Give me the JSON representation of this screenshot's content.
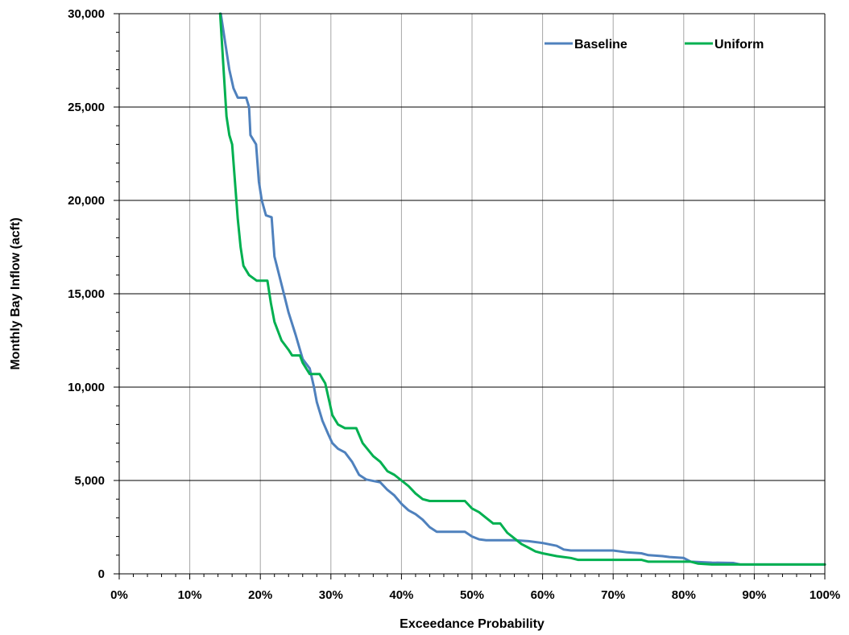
{
  "chart_data": {
    "type": "line",
    "title": "",
    "xlabel": "Exceedance Probability",
    "ylabel": "Monthly Bay Inflow  (acft)",
    "xlim": [
      0,
      100
    ],
    "ylim": [
      0,
      30000
    ],
    "x_ticks": [
      "0%",
      "10%",
      "20%",
      "30%",
      "40%",
      "50%",
      "60%",
      "70%",
      "80%",
      "90%",
      "100%"
    ],
    "y_ticks": [
      "0",
      "5,000",
      "10,000",
      "15,000",
      "20,000",
      "25,000",
      "30,000"
    ],
    "grid": true,
    "legend_position": "top-right",
    "series": [
      {
        "name": "Baseline",
        "color": "#4f81bd",
        "points": [
          [
            14.4,
            30000
          ],
          [
            15.0,
            28500
          ],
          [
            15.6,
            27000
          ],
          [
            16.2,
            26000
          ],
          [
            16.8,
            25500
          ],
          [
            18.0,
            25500
          ],
          [
            18.4,
            25000
          ],
          [
            18.6,
            23500
          ],
          [
            19.4,
            23000
          ],
          [
            19.8,
            21000
          ],
          [
            20.2,
            20000
          ],
          [
            20.8,
            19200
          ],
          [
            21.6,
            19100
          ],
          [
            22.0,
            17000
          ],
          [
            23.0,
            15500
          ],
          [
            24.0,
            14000
          ],
          [
            25.0,
            12800
          ],
          [
            26.0,
            11500
          ],
          [
            27.0,
            11000
          ],
          [
            27.6,
            10000
          ],
          [
            28.0,
            9200
          ],
          [
            28.8,
            8200
          ],
          [
            29.6,
            7500
          ],
          [
            30.2,
            7000
          ],
          [
            31.0,
            6700
          ],
          [
            32.0,
            6500
          ],
          [
            33.0,
            6000
          ],
          [
            34.0,
            5300
          ],
          [
            35.0,
            5050
          ],
          [
            37.0,
            4900
          ],
          [
            38.0,
            4500
          ],
          [
            39.0,
            4200
          ],
          [
            40.0,
            3750
          ],
          [
            41.0,
            3400
          ],
          [
            42.0,
            3200
          ],
          [
            43.0,
            2900
          ],
          [
            44.0,
            2500
          ],
          [
            45.0,
            2250
          ],
          [
            49.0,
            2250
          ],
          [
            50.0,
            2000
          ],
          [
            51.0,
            1850
          ],
          [
            52.0,
            1800
          ],
          [
            56.0,
            1800
          ],
          [
            58.0,
            1750
          ],
          [
            60.0,
            1650
          ],
          [
            62.0,
            1500
          ],
          [
            63.0,
            1300
          ],
          [
            64.0,
            1250
          ],
          [
            70.0,
            1250
          ],
          [
            72.0,
            1150
          ],
          [
            74.0,
            1100
          ],
          [
            75.0,
            1000
          ],
          [
            77.0,
            950
          ],
          [
            78.0,
            900
          ],
          [
            80.0,
            850
          ],
          [
            81.0,
            650
          ],
          [
            84.0,
            600
          ],
          [
            87.0,
            580
          ],
          [
            88.0,
            500
          ],
          [
            100.0,
            500
          ]
        ]
      },
      {
        "name": "Uniform",
        "color": "#00b050",
        "points": [
          [
            14.3,
            30000
          ],
          [
            14.8,
            27000
          ],
          [
            15.2,
            24500
          ],
          [
            15.6,
            23500
          ],
          [
            16.0,
            23000
          ],
          [
            16.4,
            21000
          ],
          [
            16.8,
            19000
          ],
          [
            17.2,
            17500
          ],
          [
            17.6,
            16500
          ],
          [
            18.4,
            16000
          ],
          [
            19.5,
            15700
          ],
          [
            21.0,
            15700
          ],
          [
            21.5,
            14500
          ],
          [
            22.0,
            13500
          ],
          [
            23.0,
            12500
          ],
          [
            24.0,
            12000
          ],
          [
            24.5,
            11700
          ],
          [
            25.6,
            11700
          ],
          [
            26.0,
            11300
          ],
          [
            27.0,
            10700
          ],
          [
            28.4,
            10700
          ],
          [
            29.2,
            10200
          ],
          [
            29.8,
            9200
          ],
          [
            30.2,
            8500
          ],
          [
            31.0,
            8000
          ],
          [
            32.0,
            7800
          ],
          [
            33.6,
            7800
          ],
          [
            34.5,
            7000
          ],
          [
            36.0,
            6300
          ],
          [
            37.0,
            6000
          ],
          [
            38.0,
            5500
          ],
          [
            39.0,
            5300
          ],
          [
            40.0,
            5000
          ],
          [
            41.0,
            4700
          ],
          [
            42.0,
            4300
          ],
          [
            43.0,
            4000
          ],
          [
            44.0,
            3900
          ],
          [
            49.0,
            3900
          ],
          [
            50.0,
            3500
          ],
          [
            51.0,
            3300
          ],
          [
            52.0,
            3000
          ],
          [
            53.0,
            2700
          ],
          [
            54.0,
            2700
          ],
          [
            55.0,
            2200
          ],
          [
            56.0,
            1900
          ],
          [
            57.0,
            1600
          ],
          [
            58.0,
            1400
          ],
          [
            59.0,
            1200
          ],
          [
            60.0,
            1100
          ],
          [
            62.0,
            950
          ],
          [
            64.0,
            850
          ],
          [
            65.0,
            750
          ],
          [
            74.0,
            750
          ],
          [
            75.0,
            650
          ],
          [
            81.0,
            650
          ],
          [
            82.0,
            550
          ],
          [
            84.0,
            500
          ],
          [
            100.0,
            500
          ]
        ]
      }
    ]
  }
}
